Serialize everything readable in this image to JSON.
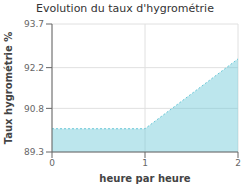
{
  "chart_data": {
    "type": "area",
    "title": "Evolution du taux d'hygrométrie",
    "xlabel": "heure par heure",
    "ylabel": "Taux hygrométrie %",
    "x": [
      0,
      1,
      2
    ],
    "values": [
      90.1,
      90.1,
      92.5
    ],
    "xlim": [
      0,
      2
    ],
    "ylim": [
      89.3,
      93.7
    ],
    "xticks": [
      0,
      1,
      2
    ],
    "yticks": [
      89.3,
      90.8,
      92.2,
      93.7
    ],
    "color": "#6ac8d8",
    "line_style": "dotted",
    "grid": true
  }
}
